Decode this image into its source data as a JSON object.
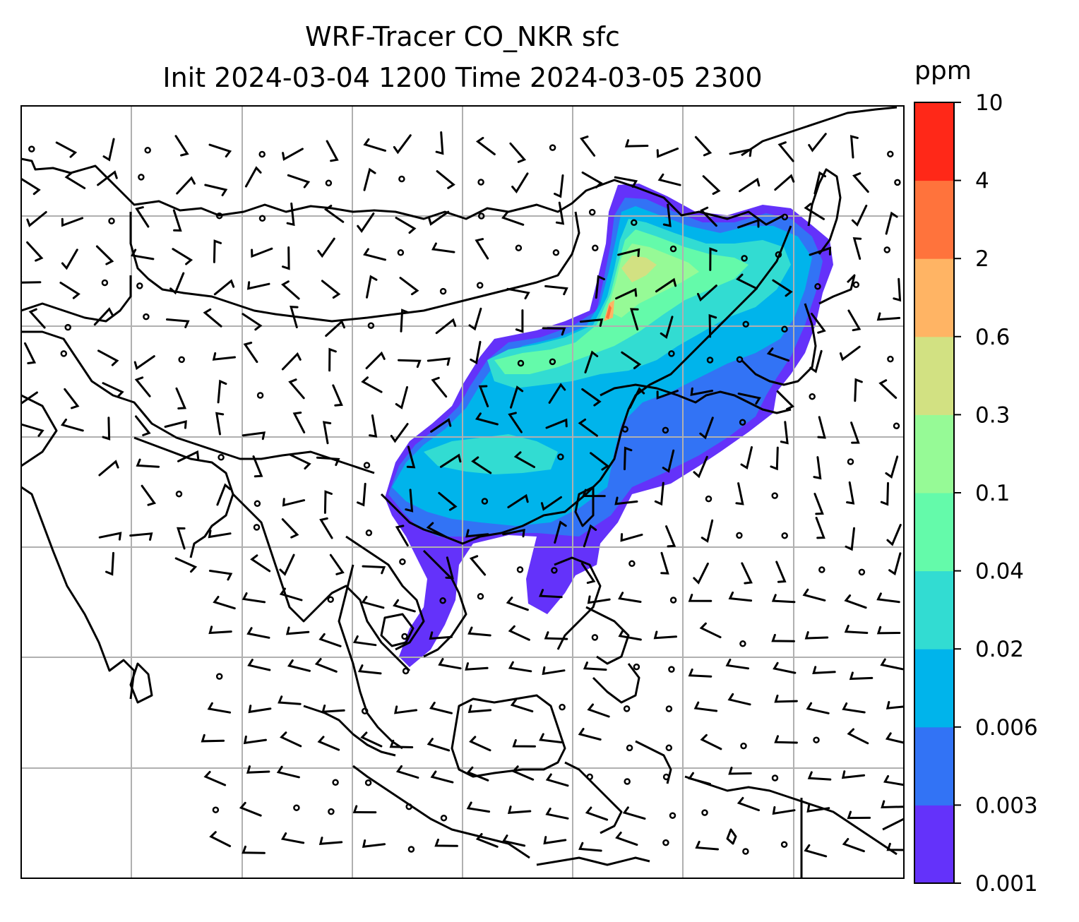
{
  "title_line_1": "WRF-Tracer CO_NKR sfc",
  "title_line_2": "Init 2024-03-04 1200 Time 2024-03-05 2300",
  "colorbar": {
    "unit": "ppm",
    "levels": [
      "0.001",
      "0.003",
      "0.006",
      "0.02",
      "0.04",
      "0.1",
      "0.3",
      "0.6",
      "2",
      "4",
      "10"
    ],
    "colors": [
      "#6432fa",
      "#3273f5",
      "#00b4eb",
      "#32dcd2",
      "#64faaa",
      "#96fa96",
      "#d2e182",
      "#ffb464",
      "#ff733c",
      "#ff2818"
    ]
  },
  "map": {
    "gridlines": true,
    "gridline_color": "#b0b0b0",
    "features": [
      "coastlines",
      "country-borders",
      "wind-barbs",
      "calm-wind-circles",
      "tracer-concentration-fill"
    ]
  }
}
